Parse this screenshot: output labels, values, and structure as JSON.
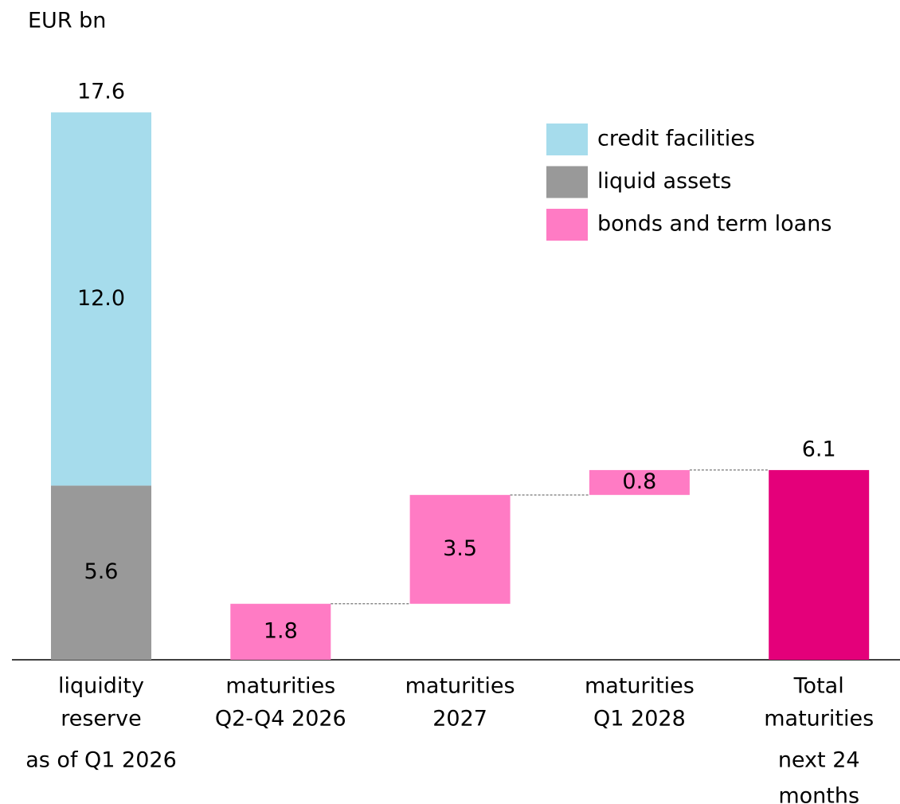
{
  "chart_data": {
    "type": "waterfall",
    "unit": "EUR bn",
    "categories": [
      [
        "liquidity",
        "reserve",
        "as of Q1 2026"
      ],
      [
        "maturities",
        "Q2-Q4 2026"
      ],
      [
        "maturities",
        "2027"
      ],
      [
        "maturities",
        "Q1 2028"
      ],
      [
        "Total",
        "maturities",
        "next 24",
        "months"
      ]
    ],
    "series": [
      {
        "name": "liquid assets",
        "color": "#999999",
        "values": [
          5.6,
          null,
          null,
          null,
          null
        ],
        "value_labels": [
          "5.6",
          null,
          null,
          null,
          null
        ]
      },
      {
        "name": "credit facilities",
        "color": "#a6dcec",
        "values": [
          12.0,
          null,
          null,
          null,
          null
        ],
        "value_labels": [
          "12.0",
          null,
          null,
          null,
          null
        ]
      },
      {
        "name": "bonds and term loans",
        "color": "#ff7bc4",
        "values": [
          null,
          1.8,
          3.5,
          0.8,
          null
        ],
        "value_labels": [
          null,
          "1.8",
          "3.5",
          "0.8",
          null
        ]
      }
    ],
    "legend_order": [
      1,
      0,
      2
    ],
    "totals": {
      "color": "#e4007a",
      "values": [
        17.6,
        null,
        null,
        null,
        6.1
      ],
      "bar": [
        false,
        false,
        false,
        false,
        true
      ]
    }
  }
}
